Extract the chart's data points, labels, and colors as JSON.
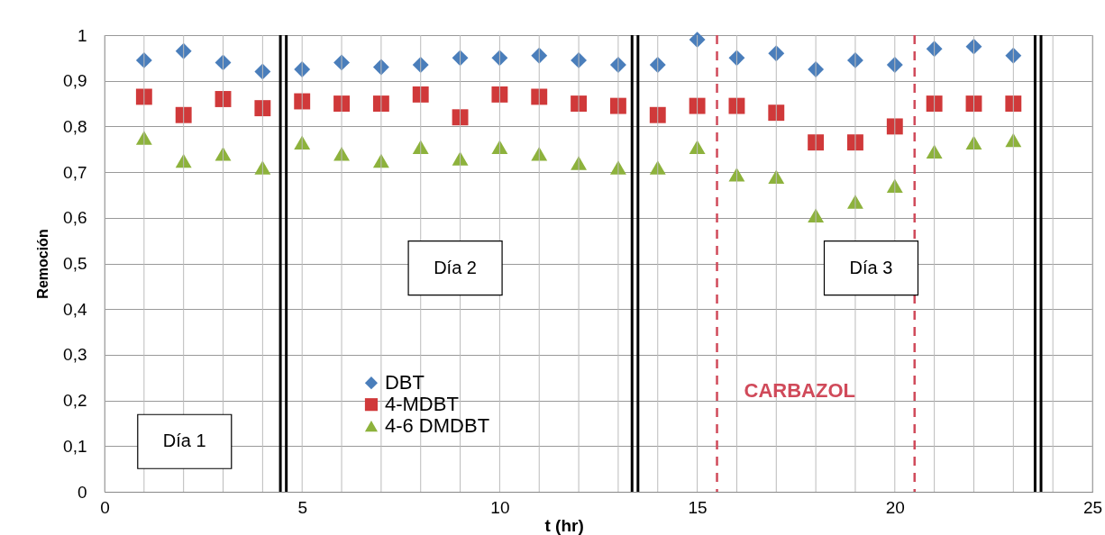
{
  "chart_data": {
    "type": "scatter",
    "xlabel": "t (hr)",
    "ylabel": "Remoción",
    "x": [
      1,
      2,
      3,
      4,
      5,
      6,
      7,
      8,
      9,
      10,
      11,
      12,
      13,
      14,
      15,
      16,
      17,
      18,
      19,
      20,
      21,
      22,
      23
    ],
    "series": [
      {
        "name": "DBT",
        "color": "#4a7ebb",
        "marker": "diamond",
        "values": [
          0.945,
          0.965,
          0.94,
          0.92,
          0.925,
          0.94,
          0.93,
          0.935,
          0.95,
          0.95,
          0.955,
          0.945,
          0.935,
          0.935,
          0.99,
          0.95,
          0.96,
          0.925,
          0.945,
          0.935,
          0.97,
          0.975,
          0.955
        ]
      },
      {
        "name": "4-MDBT",
        "color": "#d0393a",
        "marker": "square",
        "values": [
          0.865,
          0.825,
          0.86,
          0.84,
          0.855,
          0.85,
          0.85,
          0.87,
          0.82,
          0.87,
          0.865,
          0.85,
          0.845,
          0.825,
          0.845,
          0.845,
          0.83,
          0.765,
          0.765,
          0.8,
          0.85,
          0.85,
          0.85
        ]
      },
      {
        "name": "4-6 DMDBT",
        "color": "#8db23c",
        "marker": "triangle",
        "values": [
          0.775,
          0.725,
          0.74,
          0.71,
          0.765,
          0.74,
          0.725,
          0.755,
          0.73,
          0.755,
          0.74,
          0.72,
          0.71,
          0.71,
          0.755,
          0.695,
          0.69,
          0.605,
          0.635,
          0.67,
          0.745,
          0.765,
          0.77
        ]
      }
    ],
    "xlim": [
      0,
      25
    ],
    "xticks": [
      0,
      5,
      10,
      15,
      20,
      25
    ],
    "ylim": [
      0,
      1
    ],
    "yticks": [
      0,
      {
        "value": 0.1,
        "label": "0,1"
      },
      {
        "value": 0.2,
        "label": "0,2"
      },
      {
        "value": 0.3,
        "label": "0,3"
      },
      {
        "value": 0.4,
        "label": "0,4"
      },
      {
        "value": 0.5,
        "label": "0,5"
      },
      {
        "value": 0.6,
        "label": "0,6"
      },
      {
        "value": 0.7,
        "label": "0,7"
      },
      {
        "value": 0.8,
        "label": "0,8"
      },
      {
        "value": 0.9,
        "label": "0,9"
      },
      1
    ],
    "grid": true,
    "legend": "bottom left",
    "ref_lines": [
      {
        "axis": "x",
        "value": 4.45,
        "color": "#000000"
      },
      {
        "axis": "x",
        "value": 4.6,
        "color": "#000000"
      },
      {
        "axis": "x",
        "value": 13.35,
        "color": "#000000"
      },
      {
        "axis": "x",
        "value": 13.5,
        "color": "#000000"
      },
      {
        "axis": "x",
        "value": 23.55,
        "color": "#000000"
      },
      {
        "axis": "x",
        "value": 23.7,
        "color": "#000000"
      },
      {
        "axis": "x",
        "value": 15.5,
        "color": "#d04a5a",
        "line_style": "dashed",
        "label": "CARBAZOL"
      },
      {
        "axis": "x",
        "value": 20.5,
        "color": "#d04a5a",
        "line_style": "dashed"
      }
    ],
    "annotations": [
      "Día 1",
      "Día 2",
      "Día 3"
    ]
  }
}
